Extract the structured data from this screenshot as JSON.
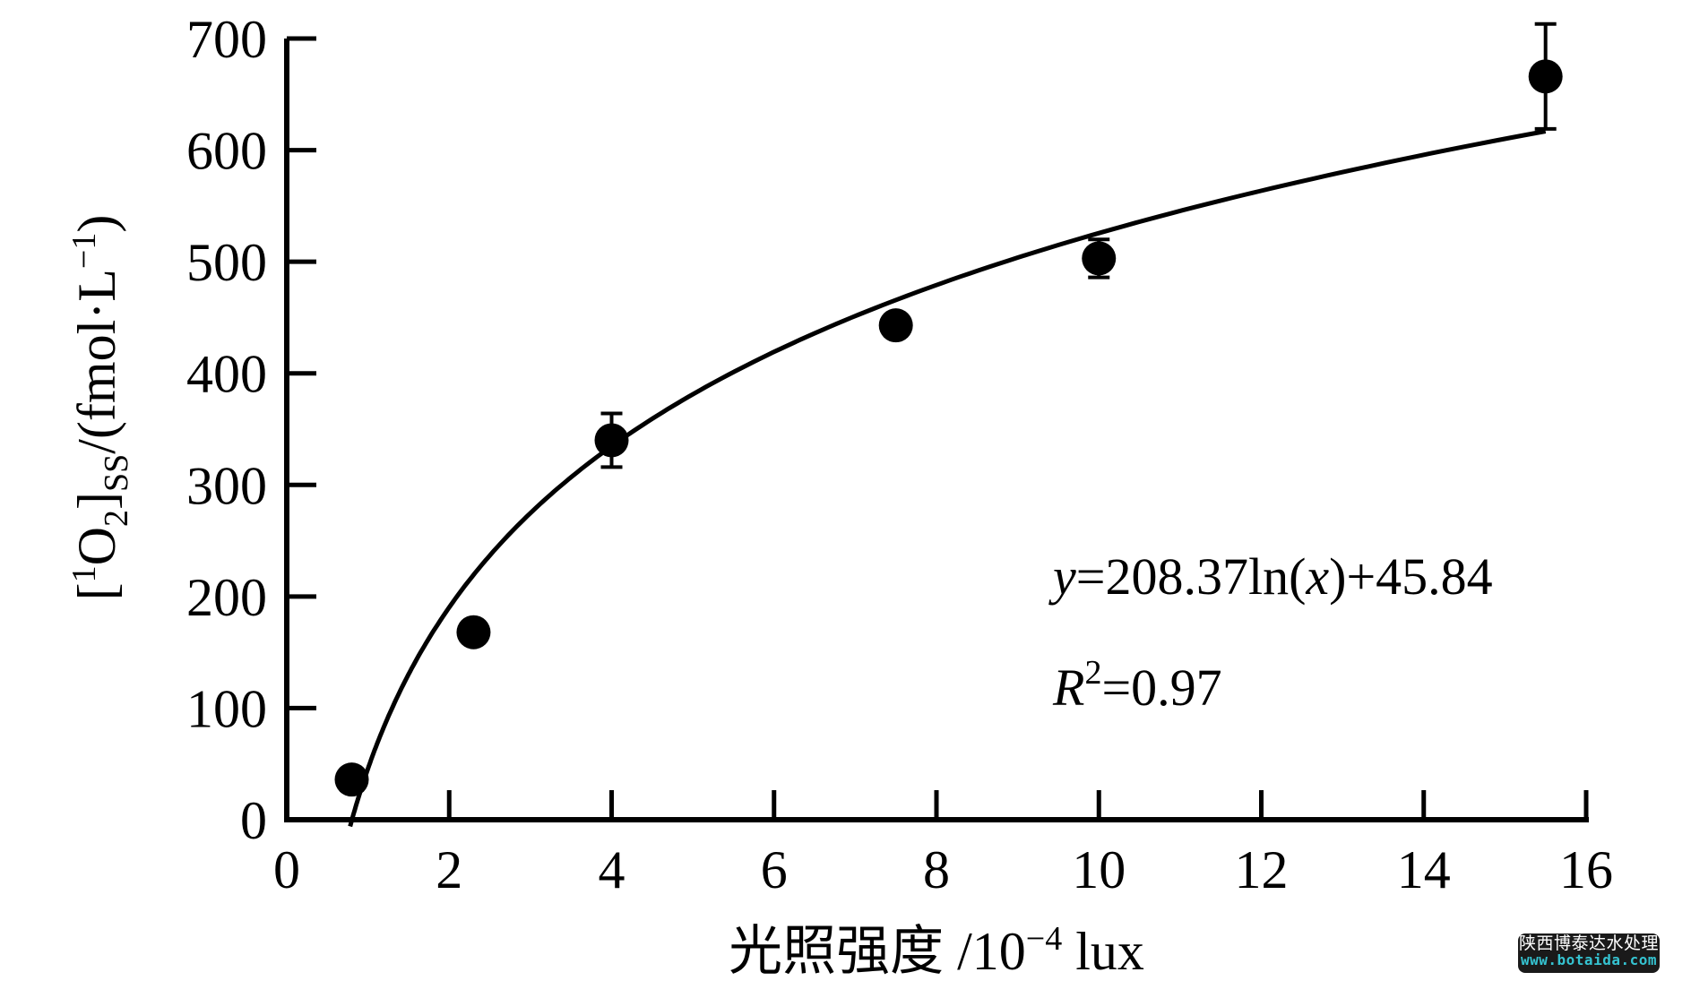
{
  "chart_data": {
    "type": "scatter",
    "title": "",
    "grid": false,
    "legend": null,
    "xlim": [
      0,
      16
    ],
    "ylim": [
      0,
      700
    ],
    "xticks": [
      0,
      2,
      4,
      6,
      8,
      10,
      12,
      14,
      16
    ],
    "yticks": [
      0,
      100,
      200,
      300,
      400,
      500,
      600,
      700
    ],
    "xlabel": {
      "main": "光照强度 /10",
      "sup": "−4",
      "unit": " lux",
      "plain": "光照强度 /10^−4 lux"
    },
    "ylabel": {
      "open": "[",
      "sup1": "1",
      "O": "O",
      "sub2": "2",
      "close_bracket": "]",
      "subSS": "SS",
      "mid": "/(fmol·L",
      "supm1": "−1",
      "close": ")",
      "plain": "[1O2]SS/(fmol·L−1)"
    },
    "points": {
      "x": [
        0.8,
        2.3,
        4.0,
        7.5,
        10.0,
        15.5
      ],
      "y": [
        36,
        168,
        340,
        443,
        503,
        666
      ],
      "y_err": [
        0,
        0,
        24,
        0,
        17,
        47
      ]
    },
    "fit": {
      "type": "logarithmic",
      "slope": 208.37,
      "intercept": 45.84,
      "x_start": 0.78,
      "x_end": 15.5,
      "r_squared": 0.97
    },
    "annotation": {
      "eq_var_y": "y",
      "eq_mid1": "=208.37ln(",
      "eq_var_x": "x",
      "eq_mid2": ")+45.84",
      "r_var": "R",
      "r_sup": "2",
      "r_val": "=0.97"
    },
    "colors": {
      "axis": "#000000",
      "marker": "#000000",
      "line": "#000000"
    }
  },
  "watermark": {
    "line1": "陕西博泰达水处理",
    "line2": "www.botaida.com",
    "bg_color": "#1a1a1a",
    "text_color": "#ffffff",
    "url_color": "#35c3d1"
  }
}
